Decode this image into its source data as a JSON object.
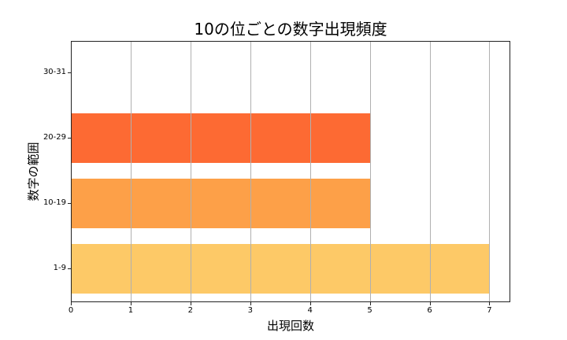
{
  "chart_data": {
    "type": "bar",
    "orientation": "horizontal",
    "title": "10の位ごとの数字出現頻度",
    "xlabel": "出現回数",
    "ylabel": "数字の範囲",
    "categories": [
      "1-9",
      "10-19",
      "20-29",
      "30-31"
    ],
    "values": [
      7,
      5,
      5,
      0
    ],
    "colors": [
      "#FDC967",
      "#FDA048",
      "#FD6A33",
      "#FD4A2A"
    ],
    "xlim": [
      0,
      7.35
    ],
    "xticks": [
      "0",
      "1",
      "2",
      "3",
      "4",
      "5",
      "6",
      "7"
    ],
    "grid": "x",
    "legend": null
  }
}
